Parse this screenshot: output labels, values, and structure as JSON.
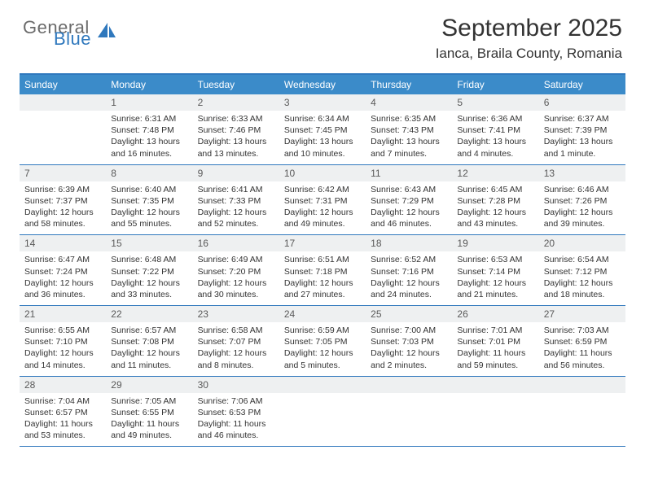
{
  "logo": {
    "general": "General",
    "blue": "Blue"
  },
  "title": "September 2025",
  "location": "Ianca, Braila County, Romania",
  "day_names": [
    "Sunday",
    "Monday",
    "Tuesday",
    "Wednesday",
    "Thursday",
    "Friday",
    "Saturday"
  ],
  "colors": {
    "header_bg": "#3b8bc9",
    "border": "#2f78bd",
    "daynum_bg": "#eef0f1",
    "text": "#333333",
    "logo_gray": "#6b6b6b",
    "logo_blue": "#2f78bd"
  },
  "weeks": [
    [
      {
        "n": "",
        "sr": "",
        "ss": "",
        "dl": ""
      },
      {
        "n": "1",
        "sr": "Sunrise: 6:31 AM",
        "ss": "Sunset: 7:48 PM",
        "dl": "Daylight: 13 hours and 16 minutes."
      },
      {
        "n": "2",
        "sr": "Sunrise: 6:33 AM",
        "ss": "Sunset: 7:46 PM",
        "dl": "Daylight: 13 hours and 13 minutes."
      },
      {
        "n": "3",
        "sr": "Sunrise: 6:34 AM",
        "ss": "Sunset: 7:45 PM",
        "dl": "Daylight: 13 hours and 10 minutes."
      },
      {
        "n": "4",
        "sr": "Sunrise: 6:35 AM",
        "ss": "Sunset: 7:43 PM",
        "dl": "Daylight: 13 hours and 7 minutes."
      },
      {
        "n": "5",
        "sr": "Sunrise: 6:36 AM",
        "ss": "Sunset: 7:41 PM",
        "dl": "Daylight: 13 hours and 4 minutes."
      },
      {
        "n": "6",
        "sr": "Sunrise: 6:37 AM",
        "ss": "Sunset: 7:39 PM",
        "dl": "Daylight: 13 hours and 1 minute."
      }
    ],
    [
      {
        "n": "7",
        "sr": "Sunrise: 6:39 AM",
        "ss": "Sunset: 7:37 PM",
        "dl": "Daylight: 12 hours and 58 minutes."
      },
      {
        "n": "8",
        "sr": "Sunrise: 6:40 AM",
        "ss": "Sunset: 7:35 PM",
        "dl": "Daylight: 12 hours and 55 minutes."
      },
      {
        "n": "9",
        "sr": "Sunrise: 6:41 AM",
        "ss": "Sunset: 7:33 PM",
        "dl": "Daylight: 12 hours and 52 minutes."
      },
      {
        "n": "10",
        "sr": "Sunrise: 6:42 AM",
        "ss": "Sunset: 7:31 PM",
        "dl": "Daylight: 12 hours and 49 minutes."
      },
      {
        "n": "11",
        "sr": "Sunrise: 6:43 AM",
        "ss": "Sunset: 7:29 PM",
        "dl": "Daylight: 12 hours and 46 minutes."
      },
      {
        "n": "12",
        "sr": "Sunrise: 6:45 AM",
        "ss": "Sunset: 7:28 PM",
        "dl": "Daylight: 12 hours and 43 minutes."
      },
      {
        "n": "13",
        "sr": "Sunrise: 6:46 AM",
        "ss": "Sunset: 7:26 PM",
        "dl": "Daylight: 12 hours and 39 minutes."
      }
    ],
    [
      {
        "n": "14",
        "sr": "Sunrise: 6:47 AM",
        "ss": "Sunset: 7:24 PM",
        "dl": "Daylight: 12 hours and 36 minutes."
      },
      {
        "n": "15",
        "sr": "Sunrise: 6:48 AM",
        "ss": "Sunset: 7:22 PM",
        "dl": "Daylight: 12 hours and 33 minutes."
      },
      {
        "n": "16",
        "sr": "Sunrise: 6:49 AM",
        "ss": "Sunset: 7:20 PM",
        "dl": "Daylight: 12 hours and 30 minutes."
      },
      {
        "n": "17",
        "sr": "Sunrise: 6:51 AM",
        "ss": "Sunset: 7:18 PM",
        "dl": "Daylight: 12 hours and 27 minutes."
      },
      {
        "n": "18",
        "sr": "Sunrise: 6:52 AM",
        "ss": "Sunset: 7:16 PM",
        "dl": "Daylight: 12 hours and 24 minutes."
      },
      {
        "n": "19",
        "sr": "Sunrise: 6:53 AM",
        "ss": "Sunset: 7:14 PM",
        "dl": "Daylight: 12 hours and 21 minutes."
      },
      {
        "n": "20",
        "sr": "Sunrise: 6:54 AM",
        "ss": "Sunset: 7:12 PM",
        "dl": "Daylight: 12 hours and 18 minutes."
      }
    ],
    [
      {
        "n": "21",
        "sr": "Sunrise: 6:55 AM",
        "ss": "Sunset: 7:10 PM",
        "dl": "Daylight: 12 hours and 14 minutes."
      },
      {
        "n": "22",
        "sr": "Sunrise: 6:57 AM",
        "ss": "Sunset: 7:08 PM",
        "dl": "Daylight: 12 hours and 11 minutes."
      },
      {
        "n": "23",
        "sr": "Sunrise: 6:58 AM",
        "ss": "Sunset: 7:07 PM",
        "dl": "Daylight: 12 hours and 8 minutes."
      },
      {
        "n": "24",
        "sr": "Sunrise: 6:59 AM",
        "ss": "Sunset: 7:05 PM",
        "dl": "Daylight: 12 hours and 5 minutes."
      },
      {
        "n": "25",
        "sr": "Sunrise: 7:00 AM",
        "ss": "Sunset: 7:03 PM",
        "dl": "Daylight: 12 hours and 2 minutes."
      },
      {
        "n": "26",
        "sr": "Sunrise: 7:01 AM",
        "ss": "Sunset: 7:01 PM",
        "dl": "Daylight: 11 hours and 59 minutes."
      },
      {
        "n": "27",
        "sr": "Sunrise: 7:03 AM",
        "ss": "Sunset: 6:59 PM",
        "dl": "Daylight: 11 hours and 56 minutes."
      }
    ],
    [
      {
        "n": "28",
        "sr": "Sunrise: 7:04 AM",
        "ss": "Sunset: 6:57 PM",
        "dl": "Daylight: 11 hours and 53 minutes."
      },
      {
        "n": "29",
        "sr": "Sunrise: 7:05 AM",
        "ss": "Sunset: 6:55 PM",
        "dl": "Daylight: 11 hours and 49 minutes."
      },
      {
        "n": "30",
        "sr": "Sunrise: 7:06 AM",
        "ss": "Sunset: 6:53 PM",
        "dl": "Daylight: 11 hours and 46 minutes."
      },
      {
        "n": "",
        "sr": "",
        "ss": "",
        "dl": ""
      },
      {
        "n": "",
        "sr": "",
        "ss": "",
        "dl": ""
      },
      {
        "n": "",
        "sr": "",
        "ss": "",
        "dl": ""
      },
      {
        "n": "",
        "sr": "",
        "ss": "",
        "dl": ""
      }
    ]
  ]
}
